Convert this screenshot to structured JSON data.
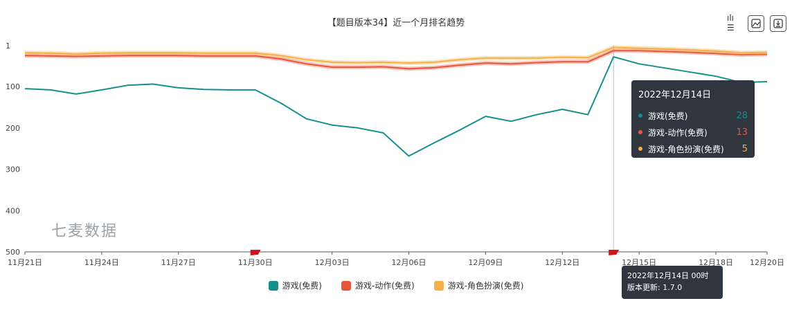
{
  "title": "【题目版本34】近一个月排名趋势",
  "toolbar": {
    "icons": [
      "bar-toggle-icon",
      "save-image-icon",
      "download-icon"
    ],
    "bar_toggle_label": "ılı ☰"
  },
  "watermark": "七麦数据",
  "tooltip": {
    "date": "2022年12月14日",
    "rows": [
      {
        "name": "游戏(免费)",
        "value": "28",
        "color": "#13908c"
      },
      {
        "name": "游戏-动作(免费)",
        "value": "13",
        "color": "#e5573c"
      },
      {
        "name": "游戏-角色扮演(免费)",
        "value": "5",
        "color": "#f5b04b"
      }
    ]
  },
  "marker_tooltip": {
    "line1": "2022年12月14日 00时",
    "line2": "版本更新: 1.7.0"
  },
  "chart_data": {
    "type": "line",
    "x": [
      "11月21日",
      "11月22日",
      "11月23日",
      "11月24日",
      "11月25日",
      "11月26日",
      "11月27日",
      "11月28日",
      "11月29日",
      "11月30日",
      "12月01日",
      "12月02日",
      "12月03日",
      "12月04日",
      "12月05日",
      "12月06日",
      "12月07日",
      "12月08日",
      "12月09日",
      "12月10日",
      "12月11日",
      "12月12日",
      "12月13日",
      "12月14日",
      "12月15日",
      "12月16日",
      "12月17日",
      "12月18日",
      "12月19日",
      "12月20日"
    ],
    "x_tick_labels": [
      "11月21日",
      "11月24日",
      "11月27日",
      "11月30日",
      "12月03日",
      "12月06日",
      "12月09日",
      "12月12日",
      "12月15日",
      "12月18日",
      "12月20日"
    ],
    "y_tick_labels": [
      "1",
      "100",
      "200",
      "300",
      "400",
      "500"
    ],
    "ylim": [
      1,
      500
    ],
    "y_inverted": true,
    "grid": false,
    "legend_position": "bottom",
    "series": [
      {
        "name": "游戏(免费)",
        "color": "#13908c",
        "values": [
          105,
          108,
          118,
          108,
          97,
          94,
          103,
          107,
          108,
          108,
          140,
          178,
          193,
          200,
          212,
          268,
          236,
          205,
          172,
          184,
          168,
          155,
          168,
          28,
          45,
          55,
          65,
          75,
          90,
          88
        ]
      },
      {
        "name": "游戏-动作(免费)",
        "color": "#e5573c",
        "values": [
          25,
          26,
          27,
          26,
          25,
          25,
          25,
          26,
          26,
          26,
          33,
          45,
          53,
          53,
          52,
          57,
          54,
          48,
          43,
          45,
          42,
          40,
          40,
          13,
          13,
          15,
          17,
          20,
          23,
          22
        ]
      },
      {
        "name": "游戏-角色扮演(免费)",
        "color": "#f5b04b",
        "values": [
          18,
          19,
          21,
          19,
          18,
          18,
          18,
          19,
          19,
          19,
          25,
          35,
          41,
          42,
          41,
          43,
          41,
          35,
          31,
          31,
          31,
          29,
          30,
          5,
          7,
          9,
          11,
          14,
          18,
          17
        ]
      }
    ],
    "highlight_index": 23,
    "flag_markers": [
      9,
      23
    ]
  }
}
